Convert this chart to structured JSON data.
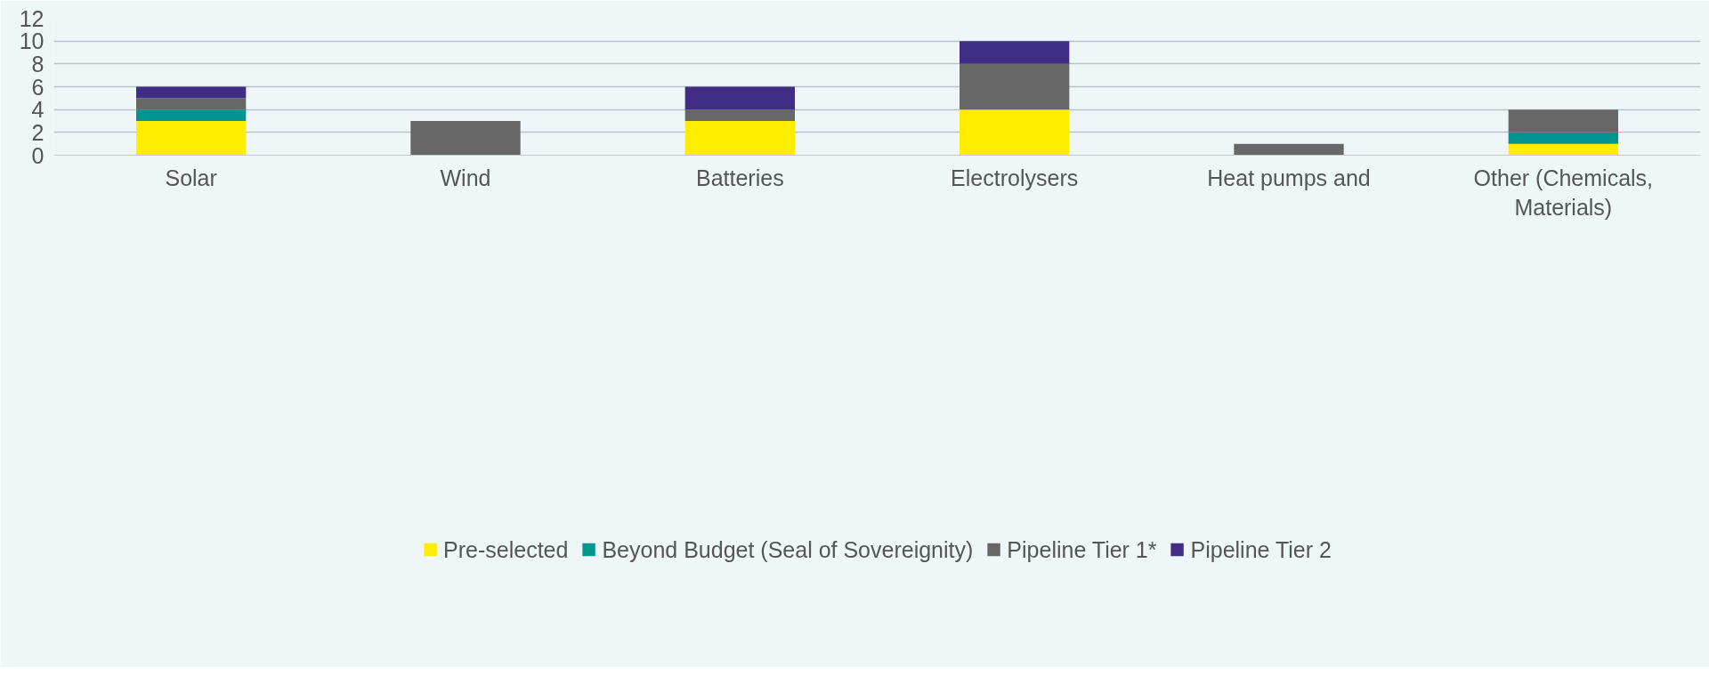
{
  "chart_data": {
    "type": "bar",
    "stacked": true,
    "categories": [
      "Solar",
      "Wind",
      "Batteries",
      "Electrolysers",
      "Heat pumps and",
      "Other (Chemicals,\nMaterials)"
    ],
    "series": [
      {
        "name": "Pre-selected",
        "color": "#ffed00",
        "values": [
          3,
          0,
          3,
          4,
          0,
          1
        ]
      },
      {
        "name": "Beyond Budget (Seal of Sovereignity)",
        "color": "#00958f",
        "values": [
          1,
          0,
          0,
          0,
          0,
          1
        ]
      },
      {
        "name": "Pipeline Tier 1*",
        "color": "#676767",
        "values": [
          1,
          3,
          1,
          4,
          1,
          2
        ]
      },
      {
        "name": "Pipeline Tier 2",
        "color": "#3f2d86",
        "values": [
          1,
          0,
          2,
          2,
          0,
          0
        ]
      }
    ],
    "ylim": [
      0,
      12
    ],
    "yticks": [
      0,
      2,
      4,
      6,
      8,
      10,
      12
    ],
    "grid": "y",
    "legend": "bottom"
  }
}
